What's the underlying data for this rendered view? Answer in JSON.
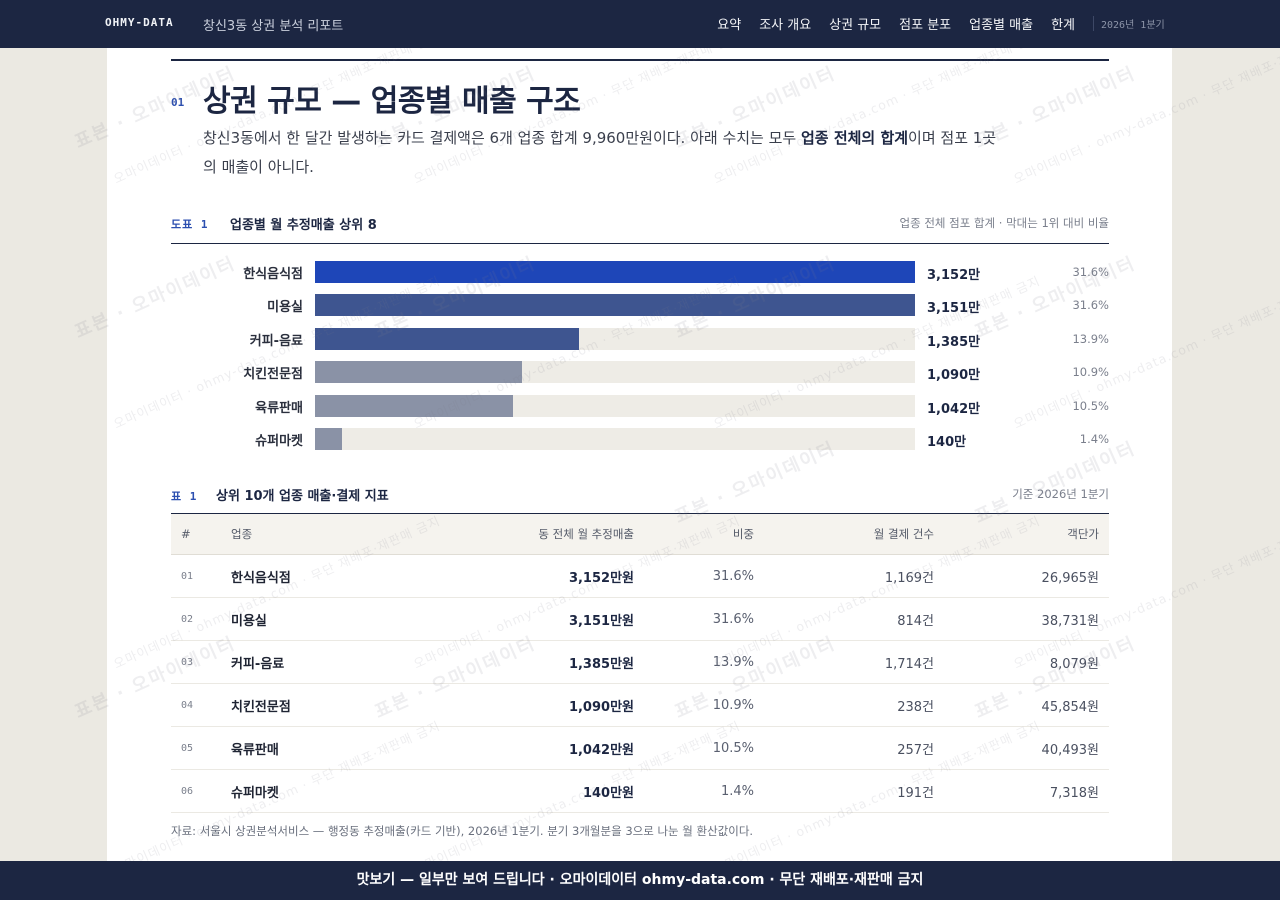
{
  "nav": {
    "brand": "OHMY-DATA",
    "report_title": "창신3동 상권 분석 리포트",
    "links": [
      "요약",
      "조사 개요",
      "상권 규모",
      "점포 분포",
      "업종별 매출",
      "한계"
    ],
    "period": "2026년 1분기"
  },
  "section": {
    "number": "01",
    "title": "상권 규모 — 업종별 매출 구조",
    "desc_part1": "창신3동에서 한 달간 발생하는 카드 결제액은 6개 업종 합계 9,960만원이다. 아래 수치는 모두 ",
    "desc_strong": "업종 전체의 합계",
    "desc_part2": "이며 점포 1곳의 매출이 아니다."
  },
  "figure": {
    "tag": "도표 1",
    "title": "업종별 월 추정매출 상위 8",
    "note": "업종 전체 점포 합계 · 막대는 1위 대비 비율"
  },
  "chart_data": {
    "type": "bar",
    "orientation": "horizontal",
    "title": "업종별 월 추정매출 상위 8",
    "categories": [
      "한식음식점",
      "미용실",
      "커피-음료",
      "치킨전문점",
      "육류판매",
      "슈퍼마켓"
    ],
    "values": [
      3152,
      3151,
      1385,
      1090,
      1042,
      140
    ],
    "value_labels": [
      "3,152만",
      "3,151만",
      "1,385만",
      "1,090만",
      "1,042만",
      "140만"
    ],
    "shares": [
      "31.6%",
      "31.6%",
      "13.9%",
      "10.9%",
      "10.5%",
      "1.4%"
    ],
    "colors": [
      "#1e46b8",
      "#3e5590",
      "#3e5590",
      "#8a92a6",
      "#8a92a6",
      "#8a92a6"
    ],
    "xlim": [
      0,
      3152
    ]
  },
  "table": {
    "tag": "표 1",
    "title": "상위 10개 업종 매출·결제 지표",
    "note": "기준 2026년 1분기",
    "headers": [
      "#",
      "업종",
      "동 전체 월 추정매출",
      "비중",
      "월 결제 건수",
      "객단가"
    ],
    "rows": [
      [
        "01",
        "한식음식점",
        "3,152만원",
        "31.6%",
        "1,169건",
        "26,965원"
      ],
      [
        "02",
        "미용실",
        "3,151만원",
        "31.6%",
        "814건",
        "38,731원"
      ],
      [
        "03",
        "커피-음료",
        "1,385만원",
        "13.9%",
        "1,714건",
        "8,079원"
      ],
      [
        "04",
        "치킨전문점",
        "1,090만원",
        "10.9%",
        "238건",
        "45,854원"
      ],
      [
        "05",
        "육류판매",
        "1,042만원",
        "10.5%",
        "257건",
        "40,493원"
      ],
      [
        "06",
        "슈퍼마켓",
        "140만원",
        "1.4%",
        "191건",
        "7,318원"
      ]
    ]
  },
  "source": "자료: 서울시 상권분석서비스 — 행정동 추정매출(카드 기반), 2026년 1분기. 분기 3개월분을 3으로 나눈 월 환산값이다.",
  "banner": "맛보기 — 일부만 보여 드립니다 · 오마이데이터 ohmy-data.com · 무단 재배포·재판매 금지",
  "watermark": {
    "text_a": "표본 · 오마이데이터",
    "text_b": "오마이데이터 · ohmy-data.com · 무단 재배포·재판매 금지"
  }
}
